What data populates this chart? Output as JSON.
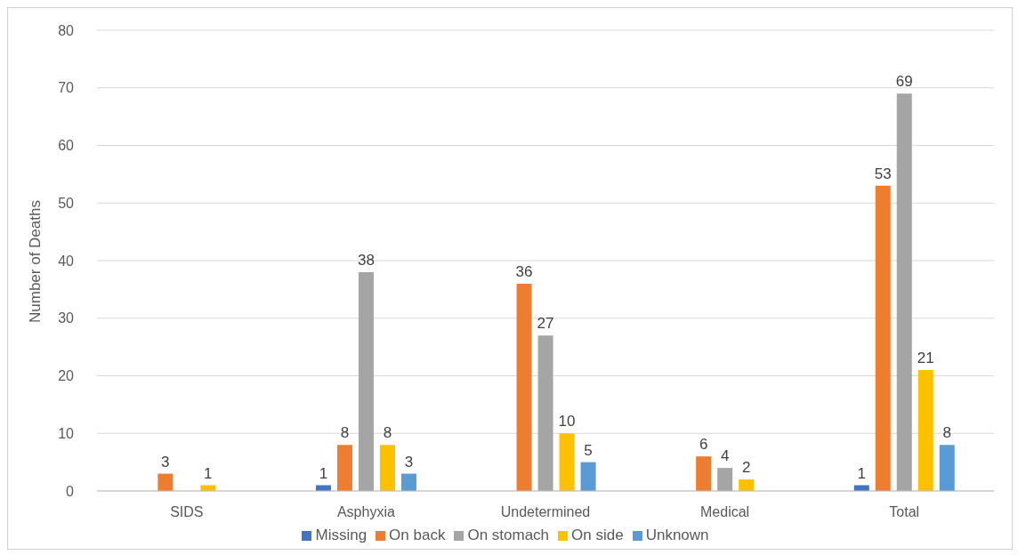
{
  "chart_data": {
    "type": "bar",
    "ylabel": "Number of Deaths",
    "categories": [
      "SIDS",
      "Asphyxia",
      "Undetermined",
      "Medical",
      "Total"
    ],
    "series": [
      {
        "name": "Missing",
        "color": "#4472c4",
        "values": [
          null,
          1,
          null,
          null,
          1
        ]
      },
      {
        "name": "On back",
        "color": "#ed7d31",
        "values": [
          3,
          8,
          36,
          6,
          53
        ]
      },
      {
        "name": "On stomach",
        "color": "#a5a5a5",
        "values": [
          null,
          38,
          27,
          4,
          69
        ]
      },
      {
        "name": "On side",
        "color": "#ffc000",
        "values": [
          1,
          8,
          10,
          2,
          21
        ]
      },
      {
        "name": "Unknown",
        "color": "#5b9bd5",
        "values": [
          null,
          3,
          5,
          null,
          8
        ]
      }
    ],
    "ylim": [
      0,
      80
    ],
    "yticks": [
      0,
      10,
      20,
      30,
      40,
      50,
      60,
      70,
      80
    ],
    "grid": "y",
    "legend": "bottom",
    "data_labels": true
  }
}
